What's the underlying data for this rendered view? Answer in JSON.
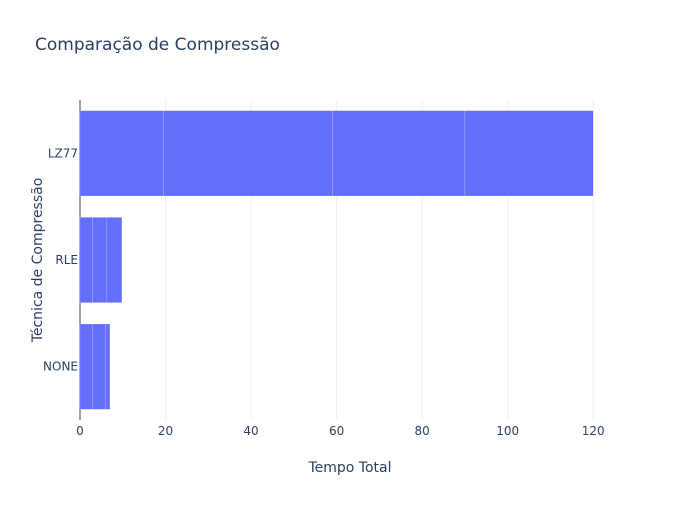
{
  "chart_data": {
    "type": "bar",
    "orientation": "horizontal",
    "stacked": true,
    "title": "Comparação de Compressão",
    "xlabel": "Tempo Total",
    "ylabel": "Técnica de Compressão",
    "xlim": [
      0,
      130
    ],
    "xticks": [
      0,
      20,
      40,
      60,
      80,
      100,
      120
    ],
    "grid": true,
    "categories": [
      "NONE",
      "RLE",
      "LZ77"
    ],
    "segments": {
      "NONE": [
        3,
        3,
        1
      ],
      "RLE": [
        3,
        3.3,
        3.5
      ],
      "LZ77": [
        19.5,
        39.5,
        31,
        30
      ]
    },
    "values": [
      7,
      9.8,
      120
    ],
    "colors": {
      "bar": "#636efa",
      "grid": "#ebf0f8",
      "text": "#2a3f5f"
    }
  }
}
